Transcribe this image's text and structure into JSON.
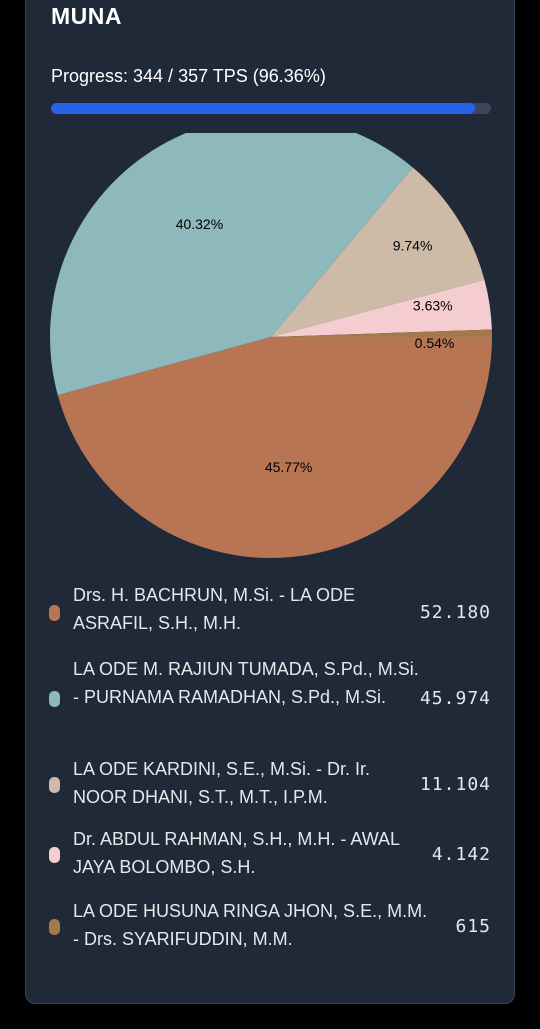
{
  "header": {
    "title": "MUNA",
    "progress_text": "Progress: 344 / 357 TPS (96.36%)",
    "progress_fraction": 0.9636
  },
  "chart_data": {
    "type": "pie",
    "title": "",
    "slices": [
      {
        "label": "Drs. H. BACHRUN, M.Si. - LA ODE ASRAFIL, S.H., M.H.",
        "value_text": "52.180",
        "value": 52180,
        "percent_label": "45.77%",
        "color": "#b87553"
      },
      {
        "label": "LA ODE M. RAJIUN TUMADA, S.Pd., M.Si. - PURNAMA RAMADHAN, S.Pd., M.Si.",
        "value_text": "45.974",
        "value": 45974,
        "percent_label": "40.32%",
        "color": "#8db9bd"
      },
      {
        "label": "LA ODE KARDINI, S.E., M.Si. - Dr. Ir. NOOR DHANI, S.T., M.T., I.P.M.",
        "value_text": "11.104",
        "value": 11104,
        "percent_label": "9.74%",
        "color": "#cdbba7"
      },
      {
        "label": "Dr. ABDUL RAHMAN, S.H., M.H. - AWAL JAYA BOLOMBO, S.H.",
        "value_text": "4.142",
        "value": 4142,
        "percent_label": "3.63%",
        "color": "#f5cccf"
      },
      {
        "label": "LA ODE HUSUNA RINGA JHON, S.E., M.M. - Drs. SYARIFUDDIN, M.M.",
        "value_text": "615",
        "value": 615,
        "percent_label": "0.54%",
        "color": "#a3784a"
      }
    ]
  }
}
